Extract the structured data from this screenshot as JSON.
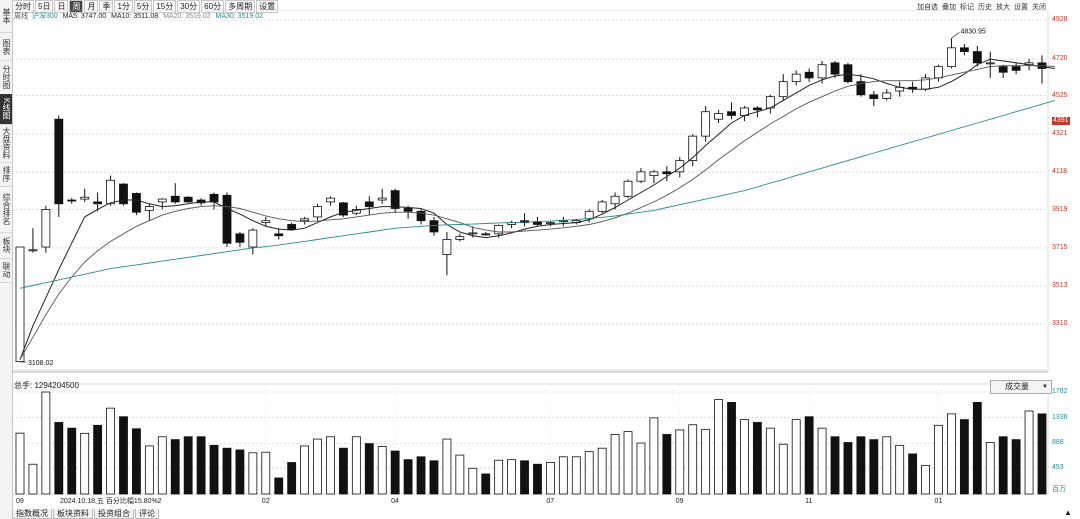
{
  "left_sidebar": [
    {
      "label": "基本",
      "active": false
    },
    {
      "label": "图表",
      "active": false
    },
    {
      "label": "分时图",
      "active": false
    },
    {
      "label": "K线图",
      "active": true
    },
    {
      "label": "大盘资料",
      "active": false
    },
    {
      "label": "排序",
      "active": false
    },
    {
      "label": "综合排名",
      "active": false
    },
    {
      "label": "板块",
      "active": false
    },
    {
      "label": "联动",
      "active": false
    }
  ],
  "toolbar": [
    {
      "label": "分时",
      "active": false
    },
    {
      "label": "5日",
      "active": false
    },
    {
      "label": "日",
      "active": false
    },
    {
      "label": "周",
      "active": true
    },
    {
      "label": "月",
      "active": false
    },
    {
      "label": "季",
      "active": false
    },
    {
      "label": "1分",
      "active": false
    },
    {
      "label": "5分",
      "active": false
    },
    {
      "label": "15分",
      "active": false
    },
    {
      "label": "30分",
      "active": false
    },
    {
      "label": "60分",
      "active": false
    },
    {
      "label": "多周期",
      "active": false
    },
    {
      "label": "设置",
      "active": false
    }
  ],
  "ma_info": {
    "prefix": "周线",
    "index_name": "沪深300",
    "ma5_label": "MA5: 3747.00",
    "ma10_label": "MA10: 3511.08",
    "ma20_label": "MA20: 3519.02",
    "ma30_label": "MA30: 3519.02",
    "colors": {
      "ma5": "#222222",
      "ma10": "#555555",
      "ma20": "#888888",
      "ma30": "#2e8b8b"
    }
  },
  "top_icons": [
    "加自选",
    "叠加",
    "标记",
    "历史",
    "放大",
    "设置",
    "关闭"
  ],
  "price_axis": [
    "4928",
    "4720",
    "4525",
    "4321",
    "4118",
    "3919",
    "3715",
    "3513",
    "3310"
  ],
  "price_axis_highlight": {
    "value": "4391",
    "color": "#c0392b"
  },
  "annotations": {
    "high": "4830.95",
    "low": "3108.02"
  },
  "volume": {
    "label": "总手: 1294204500",
    "indicator": "成交量",
    "axis": [
      "1782",
      "1336",
      "888",
      "453",
      "百万"
    ]
  },
  "x_axis": {
    "labels": [
      "09",
      "02",
      "04",
      "07",
      "09",
      "11",
      "01"
    ],
    "date_readout": "2024.10.18,五 百分比幅15.80%2"
  },
  "bottom_tabs": [
    "指数概况",
    "板块资料",
    "投资组合",
    "评论"
  ],
  "bottom_right": "▲",
  "chart_data": {
    "type": "candlestick",
    "price_range": [
      3108.02,
      4928
    ],
    "volume_range": [
      0,
      1782
    ],
    "candles": [
      {
        "o": 3110,
        "h": 3720,
        "l": 3108,
        "c": 3720,
        "v": 1063
      },
      {
        "o": 3700,
        "h": 3820,
        "l": 3690,
        "c": 3705,
        "v": 520
      },
      {
        "o": 3720,
        "h": 3940,
        "l": 3690,
        "c": 3920,
        "v": 1782
      },
      {
        "o": 4400,
        "h": 4420,
        "l": 3880,
        "c": 3950,
        "v": 1250
      },
      {
        "o": 3970,
        "h": 3980,
        "l": 3950,
        "c": 3965,
        "v": 1150
      },
      {
        "o": 3975,
        "h": 4030,
        "l": 3960,
        "c": 3985,
        "v": 1060
      },
      {
        "o": 3960,
        "h": 4010,
        "l": 3910,
        "c": 3950,
        "v": 1200
      },
      {
        "o": 3950,
        "h": 4100,
        "l": 3940,
        "c": 4075,
        "v": 1500
      },
      {
        "o": 4055,
        "h": 4060,
        "l": 3940,
        "c": 3950,
        "v": 1350
      },
      {
        "o": 4005,
        "h": 4010,
        "l": 3890,
        "c": 3905,
        "v": 1140
      },
      {
        "o": 3915,
        "h": 3950,
        "l": 3860,
        "c": 3935,
        "v": 840
      },
      {
        "o": 3960,
        "h": 3980,
        "l": 3920,
        "c": 3975,
        "v": 1000
      },
      {
        "o": 3990,
        "h": 4060,
        "l": 3950,
        "c": 3960,
        "v": 950
      },
      {
        "o": 3985,
        "h": 3990,
        "l": 3955,
        "c": 3960,
        "v": 1000
      },
      {
        "o": 3970,
        "h": 3980,
        "l": 3940,
        "c": 3955,
        "v": 1000
      },
      {
        "o": 4000,
        "h": 4010,
        "l": 3920,
        "c": 3960,
        "v": 850
      },
      {
        "o": 3995,
        "h": 4010,
        "l": 3720,
        "c": 3740,
        "v": 800
      },
      {
        "o": 3790,
        "h": 3800,
        "l": 3720,
        "c": 3745,
        "v": 770
      },
      {
        "o": 3720,
        "h": 3820,
        "l": 3680,
        "c": 3810,
        "v": 720
      },
      {
        "o": 3850,
        "h": 3880,
        "l": 3830,
        "c": 3860,
        "v": 730
      },
      {
        "o": 3790,
        "h": 3820,
        "l": 3760,
        "c": 3780,
        "v": 280
      },
      {
        "o": 3840,
        "h": 3850,
        "l": 3810,
        "c": 3815,
        "v": 550
      },
      {
        "o": 3860,
        "h": 3880,
        "l": 3840,
        "c": 3870,
        "v": 840
      },
      {
        "o": 3880,
        "h": 3950,
        "l": 3860,
        "c": 3935,
        "v": 960
      },
      {
        "o": 3960,
        "h": 3990,
        "l": 3940,
        "c": 3980,
        "v": 1000
      },
      {
        "o": 3955,
        "h": 3960,
        "l": 3880,
        "c": 3890,
        "v": 800
      },
      {
        "o": 3900,
        "h": 3940,
        "l": 3890,
        "c": 3920,
        "v": 1000
      },
      {
        "o": 3960,
        "h": 3990,
        "l": 3890,
        "c": 3935,
        "v": 880
      },
      {
        "o": 3970,
        "h": 4030,
        "l": 3950,
        "c": 3980,
        "v": 830
      },
      {
        "o": 4020,
        "h": 4030,
        "l": 3900,
        "c": 3925,
        "v": 750
      },
      {
        "o": 3925,
        "h": 3940,
        "l": 3870,
        "c": 3910,
        "v": 600
      },
      {
        "o": 3910,
        "h": 3920,
        "l": 3840,
        "c": 3860,
        "v": 650
      },
      {
        "o": 3860,
        "h": 3880,
        "l": 3780,
        "c": 3800,
        "v": 580
      },
      {
        "o": 3680,
        "h": 3800,
        "l": 3570,
        "c": 3760,
        "v": 960
      },
      {
        "o": 3760,
        "h": 3790,
        "l": 3750,
        "c": 3775,
        "v": 680
      },
      {
        "o": 3790,
        "h": 3830,
        "l": 3770,
        "c": 3795,
        "v": 450
      },
      {
        "o": 3790,
        "h": 3800,
        "l": 3780,
        "c": 3785,
        "v": 350
      },
      {
        "o": 3790,
        "h": 3840,
        "l": 3770,
        "c": 3835,
        "v": 590
      },
      {
        "o": 3840,
        "h": 3860,
        "l": 3820,
        "c": 3850,
        "v": 600
      },
      {
        "o": 3860,
        "h": 3900,
        "l": 3830,
        "c": 3850,
        "v": 580
      },
      {
        "o": 3855,
        "h": 3880,
        "l": 3830,
        "c": 3840,
        "v": 520
      },
      {
        "o": 3845,
        "h": 3860,
        "l": 3830,
        "c": 3850,
        "v": 550
      },
      {
        "o": 3860,
        "h": 3880,
        "l": 3830,
        "c": 3860,
        "v": 650
      },
      {
        "o": 3850,
        "h": 3870,
        "l": 3840,
        "c": 3860,
        "v": 650
      },
      {
        "o": 3870,
        "h": 3920,
        "l": 3850,
        "c": 3910,
        "v": 740
      },
      {
        "o": 3910,
        "h": 3970,
        "l": 3900,
        "c": 3960,
        "v": 800
      },
      {
        "o": 3950,
        "h": 4010,
        "l": 3920,
        "c": 3990,
        "v": 1040
      },
      {
        "o": 3990,
        "h": 4080,
        "l": 3980,
        "c": 4070,
        "v": 1090
      },
      {
        "o": 4070,
        "h": 4140,
        "l": 4060,
        "c": 4120,
        "v": 890
      },
      {
        "o": 4100,
        "h": 4130,
        "l": 4060,
        "c": 4120,
        "v": 1330
      },
      {
        "o": 4120,
        "h": 4150,
        "l": 4070,
        "c": 4110,
        "v": 1040
      },
      {
        "o": 4120,
        "h": 4200,
        "l": 4090,
        "c": 4180,
        "v": 1120
      },
      {
        "o": 4180,
        "h": 4320,
        "l": 4150,
        "c": 4310,
        "v": 1210
      },
      {
        "o": 4310,
        "h": 4470,
        "l": 4280,
        "c": 4440,
        "v": 1130
      },
      {
        "o": 4400,
        "h": 4450,
        "l": 4380,
        "c": 4430,
        "v": 1650
      },
      {
        "o": 4440,
        "h": 4490,
        "l": 4400,
        "c": 4420,
        "v": 1600
      },
      {
        "o": 4420,
        "h": 4470,
        "l": 4390,
        "c": 4460,
        "v": 1300
      },
      {
        "o": 4460,
        "h": 4470,
        "l": 4410,
        "c": 4450,
        "v": 1250
      },
      {
        "o": 4460,
        "h": 4530,
        "l": 4430,
        "c": 4520,
        "v": 1150
      },
      {
        "o": 4520,
        "h": 4640,
        "l": 4500,
        "c": 4600,
        "v": 870
      },
      {
        "o": 4600,
        "h": 4660,
        "l": 4580,
        "c": 4640,
        "v": 1300
      },
      {
        "o": 4650,
        "h": 4670,
        "l": 4600,
        "c": 4620,
        "v": 1350
      },
      {
        "o": 4620,
        "h": 4710,
        "l": 4590,
        "c": 4690,
        "v": 1150
      },
      {
        "o": 4700,
        "h": 4710,
        "l": 4620,
        "c": 4640,
        "v": 1000
      },
      {
        "o": 4690,
        "h": 4700,
        "l": 4590,
        "c": 4600,
        "v": 900
      },
      {
        "o": 4600,
        "h": 4640,
        "l": 4520,
        "c": 4530,
        "v": 1000
      },
      {
        "o": 4530,
        "h": 4550,
        "l": 4470,
        "c": 4510,
        "v": 950
      },
      {
        "o": 4510,
        "h": 4560,
        "l": 4500,
        "c": 4540,
        "v": 1000
      },
      {
        "o": 4550,
        "h": 4600,
        "l": 4520,
        "c": 4570,
        "v": 850
      },
      {
        "o": 4570,
        "h": 4600,
        "l": 4540,
        "c": 4560,
        "v": 700
      },
      {
        "o": 4560,
        "h": 4640,
        "l": 4550,
        "c": 4620,
        "v": 500
      },
      {
        "o": 4620,
        "h": 4690,
        "l": 4600,
        "c": 4680,
        "v": 1200
      },
      {
        "o": 4680,
        "h": 4830,
        "l": 4670,
        "c": 4780,
        "v": 1400
      },
      {
        "o": 4780,
        "h": 4800,
        "l": 4740,
        "c": 4760,
        "v": 1300
      },
      {
        "o": 4760,
        "h": 4790,
        "l": 4680,
        "c": 4700,
        "v": 1600
      },
      {
        "o": 4700,
        "h": 4760,
        "l": 4620,
        "c": 4700,
        "v": 900
      },
      {
        "o": 4680,
        "h": 4690,
        "l": 4620,
        "c": 4650,
        "v": 1000
      },
      {
        "o": 4680,
        "h": 4700,
        "l": 4640,
        "c": 4660,
        "v": 950
      },
      {
        "o": 4690,
        "h": 4720,
        "l": 4660,
        "c": 4700,
        "v": 1450
      },
      {
        "o": 4700,
        "h": 4740,
        "l": 4590,
        "c": 4670,
        "v": 1400
      }
    ],
    "ma_lines": {
      "ma5": [
        3120,
        3300,
        3450,
        3600,
        3740,
        3880,
        3920,
        3955,
        3970,
        3970,
        3950,
        3935,
        3940,
        3950,
        3960,
        3960,
        3925,
        3895,
        3860,
        3830,
        3815,
        3810,
        3820,
        3850,
        3880,
        3905,
        3915,
        3925,
        3935,
        3935,
        3930,
        3925,
        3900,
        3840,
        3800,
        3780,
        3770,
        3780,
        3795,
        3815,
        3830,
        3840,
        3845,
        3850,
        3865,
        3895,
        3930,
        3970,
        4010,
        4050,
        4095,
        4140,
        4195,
        4260,
        4320,
        4380,
        4420,
        4440,
        4460,
        4500,
        4540,
        4580,
        4610,
        4630,
        4640,
        4630,
        4615,
        4590,
        4570,
        4560,
        4560,
        4570,
        4600,
        4640,
        4690,
        4720,
        4710,
        4700,
        4690,
        4680,
        4670
      ],
      "ma10": [
        3120,
        3240,
        3360,
        3470,
        3560,
        3640,
        3700,
        3750,
        3790,
        3830,
        3860,
        3890,
        3910,
        3925,
        3935,
        3940,
        3935,
        3925,
        3905,
        3885,
        3870,
        3860,
        3855,
        3858,
        3865,
        3870,
        3880,
        3890,
        3900,
        3905,
        3905,
        3900,
        3890,
        3870,
        3850,
        3825,
        3810,
        3800,
        3800,
        3805,
        3810,
        3815,
        3822,
        3830,
        3840,
        3855,
        3875,
        3900,
        3930,
        3960,
        3995,
        4035,
        4080,
        4130,
        4185,
        4235,
        4285,
        4330,
        4375,
        4415,
        4455,
        4490,
        4520,
        4550,
        4575,
        4590,
        4600,
        4605,
        4605,
        4605,
        4610,
        4620,
        4635,
        4650,
        4665,
        4680,
        4685,
        4685,
        4685,
        4685,
        4680
      ],
      "ma30": [
        3500,
        3515,
        3530,
        3545,
        3560,
        3575,
        3590,
        3605,
        3615,
        3625,
        3635,
        3645,
        3655,
        3665,
        3675,
        3685,
        3695,
        3705,
        3715,
        3722,
        3730,
        3740,
        3750,
        3760,
        3770,
        3780,
        3790,
        3800,
        3810,
        3820,
        3825,
        3830,
        3835,
        3838,
        3840,
        3842,
        3845,
        3848,
        3850,
        3852,
        3855,
        3858,
        3862,
        3866,
        3872,
        3878,
        3885,
        3895,
        3905,
        3915,
        3930,
        3945,
        3960,
        3975,
        3990,
        4005,
        4020,
        4040,
        4060,
        4080,
        4100,
        4120,
        4140,
        4160,
        4180,
        4200,
        4220,
        4240,
        4260,
        4280,
        4300,
        4320,
        4340,
        4360,
        4380,
        4400,
        4420,
        4440,
        4460,
        4480,
        4500
      ]
    }
  }
}
